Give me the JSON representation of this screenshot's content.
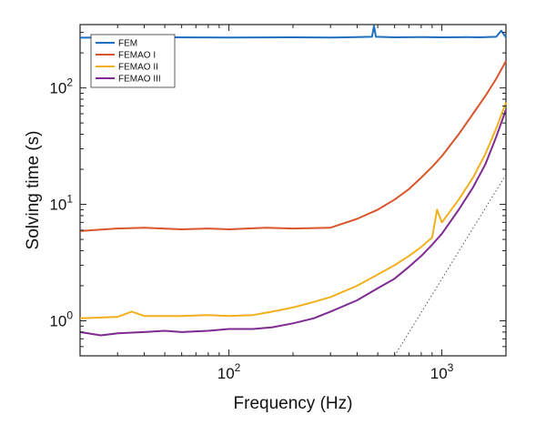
{
  "chart_data": {
    "type": "line",
    "title": "",
    "xlabel": "Frequency (Hz)",
    "ylabel": "Solving time (s)",
    "xscale": "log",
    "yscale": "log",
    "xlim": [
      20,
      2000
    ],
    "ylim": [
      0.5,
      350
    ],
    "x_ticks": [
      {
        "value": 100,
        "base": "10",
        "exp": "2"
      },
      {
        "value": 1000,
        "base": "10",
        "exp": "3"
      }
    ],
    "y_ticks": [
      {
        "value": 1,
        "base": "10",
        "exp": "0"
      },
      {
        "value": 10,
        "base": "10",
        "exp": "1"
      },
      {
        "value": 100,
        "base": "10",
        "exp": "2"
      }
    ],
    "grid": false,
    "legend_position": "top-left",
    "series": [
      {
        "name": "FEM",
        "color": "#1f6fc0",
        "x": [
          20,
          50,
          100,
          200,
          300,
          400,
          470,
          480,
          490,
          600,
          800,
          1000,
          1300,
          1500,
          1800,
          1900,
          2000
        ],
        "y": [
          270,
          272,
          271,
          272,
          271,
          273,
          275,
          340,
          275,
          272,
          273,
          272,
          273,
          272,
          275,
          310,
          272
        ]
      },
      {
        "name": "FEMAO I",
        "color": "#d9552b",
        "x": [
          20,
          30,
          40,
          60,
          80,
          100,
          150,
          200,
          300,
          400,
          500,
          600,
          700,
          800,
          900,
          1000,
          1200,
          1400,
          1600,
          1800,
          2000
        ],
        "y": [
          5.9,
          6.2,
          6.3,
          6.1,
          6.2,
          6.1,
          6.3,
          6.2,
          6.3,
          7.5,
          9.0,
          11.0,
          13.5,
          17.0,
          21.0,
          26.0,
          40.0,
          60.0,
          85.0,
          120.0,
          170.0
        ]
      },
      {
        "name": "FEMAO II",
        "color": "#f2b01e",
        "x": [
          20,
          30,
          35,
          40,
          60,
          80,
          100,
          130,
          160,
          200,
          250,
          300,
          400,
          500,
          600,
          700,
          800,
          900,
          950,
          1000,
          1200,
          1400,
          1600,
          1800,
          2000
        ],
        "y": [
          1.05,
          1.08,
          1.2,
          1.1,
          1.1,
          1.12,
          1.1,
          1.12,
          1.2,
          1.3,
          1.45,
          1.6,
          2.0,
          2.5,
          3.0,
          3.6,
          4.3,
          5.2,
          9.0,
          7.0,
          11.0,
          17.0,
          27.0,
          45.0,
          75.0
        ]
      },
      {
        "name": "FEMAO III",
        "color": "#7e2a92",
        "x": [
          20,
          25,
          30,
          40,
          50,
          60,
          80,
          100,
          130,
          160,
          200,
          250,
          300,
          400,
          500,
          600,
          700,
          800,
          900,
          1000,
          1200,
          1400,
          1600,
          1800,
          2000
        ],
        "y": [
          0.8,
          0.75,
          0.78,
          0.8,
          0.82,
          0.8,
          0.82,
          0.85,
          0.85,
          0.88,
          0.95,
          1.05,
          1.2,
          1.5,
          1.9,
          2.3,
          2.9,
          3.6,
          4.5,
          5.6,
          9.0,
          14.0,
          22.0,
          38.0,
          65.0
        ]
      },
      {
        "name": "",
        "color": "#555555",
        "dashed": true,
        "x": [
          600,
          2000
        ],
        "y": [
          0.5,
          18.0
        ]
      }
    ]
  }
}
